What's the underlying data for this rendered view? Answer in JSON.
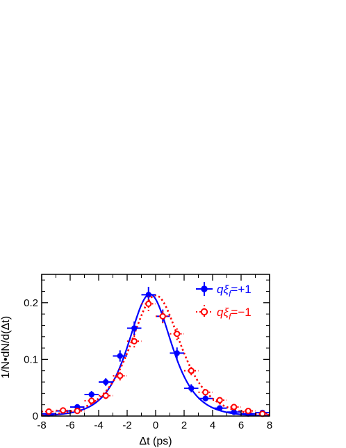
{
  "chart_data": {
    "type": "scatter",
    "xlabel": "Δt (ps)",
    "ylabel": "1/N•dN/d(Δt)",
    "xlim": [
      -8,
      8
    ],
    "ylim": [
      0,
      0.25
    ],
    "x_ticks": [
      -8,
      -6,
      -4,
      -2,
      0,
      2,
      4,
      6,
      8
    ],
    "x_tick_labels": [
      "-8",
      "-6",
      "-4",
      "-2",
      "0",
      "2",
      "4",
      "6",
      "8"
    ],
    "y_ticks": [
      0,
      0.1,
      0.2
    ],
    "y_tick_labels": [
      "0",
      "0.1",
      "0.2"
    ],
    "legend_position": "top-right",
    "series": [
      {
        "name": "qξf=+1",
        "legend_parts": {
          "q": "q",
          "xi": "ξ",
          "f": "f",
          "value": "=+1"
        },
        "color": "#0000ff",
        "marker": "filled-circle",
        "fit_style": "solid",
        "fit_peak_x": -0.4,
        "fit_peak_y": 0.215,
        "fit_tau": 1.55,
        "points": [
          {
            "x": -7.5,
            "y": 0.004,
            "ex": 0.5,
            "ey": 0.002
          },
          {
            "x": -6.5,
            "y": 0.009,
            "ex": 0.5,
            "ey": 0.003
          },
          {
            "x": -5.5,
            "y": 0.016,
            "ex": 0.5,
            "ey": 0.004
          },
          {
            "x": -4.5,
            "y": 0.038,
            "ex": 0.5,
            "ey": 0.006
          },
          {
            "x": -3.5,
            "y": 0.06,
            "ex": 0.5,
            "ey": 0.007
          },
          {
            "x": -2.5,
            "y": 0.106,
            "ex": 0.5,
            "ey": 0.01
          },
          {
            "x": -1.5,
            "y": 0.155,
            "ex": 0.5,
            "ey": 0.012
          },
          {
            "x": -0.5,
            "y": 0.214,
            "ex": 0.5,
            "ey": 0.014
          },
          {
            "x": 0.5,
            "y": 0.176,
            "ex": 0.5,
            "ey": 0.012
          },
          {
            "x": 1.5,
            "y": 0.111,
            "ex": 0.5,
            "ey": 0.01
          },
          {
            "x": 2.5,
            "y": 0.049,
            "ex": 0.5,
            "ey": 0.007
          },
          {
            "x": 3.5,
            "y": 0.031,
            "ex": 0.5,
            "ey": 0.005
          },
          {
            "x": 4.5,
            "y": 0.014,
            "ex": 0.5,
            "ey": 0.004
          },
          {
            "x": 5.5,
            "y": 0.007,
            "ex": 0.5,
            "ey": 0.003
          },
          {
            "x": 6.5,
            "y": 0.004,
            "ex": 0.5,
            "ey": 0.002
          },
          {
            "x": 7.5,
            "y": 0.006,
            "ex": 0.5,
            "ey": 0.002
          }
        ]
      },
      {
        "name": "qξf=−1",
        "legend_parts": {
          "q": "q",
          "xi": "ξ",
          "f": "f",
          "value": "=−1"
        },
        "color": "#ff0000",
        "marker": "open-circle",
        "fit_style": "dotted",
        "fit_peak_x": 0.0,
        "fit_peak_y": 0.213,
        "fit_tau": 1.8,
        "points": [
          {
            "x": -7.5,
            "y": 0.008,
            "ex": 0.5,
            "ey": 0.003
          },
          {
            "x": -6.5,
            "y": 0.01,
            "ex": 0.5,
            "ey": 0.003
          },
          {
            "x": -5.5,
            "y": 0.009,
            "ex": 0.5,
            "ey": 0.003
          },
          {
            "x": -4.5,
            "y": 0.027,
            "ex": 0.5,
            "ey": 0.005
          },
          {
            "x": -3.5,
            "y": 0.036,
            "ex": 0.5,
            "ey": 0.006
          },
          {
            "x": -2.5,
            "y": 0.071,
            "ex": 0.5,
            "ey": 0.008
          },
          {
            "x": -1.5,
            "y": 0.132,
            "ex": 0.5,
            "ey": 0.011
          },
          {
            "x": -0.5,
            "y": 0.198,
            "ex": 0.5,
            "ey": 0.013
          },
          {
            "x": 0.5,
            "y": 0.176,
            "ex": 0.5,
            "ey": 0.012
          },
          {
            "x": 1.5,
            "y": 0.145,
            "ex": 0.5,
            "ey": 0.011
          },
          {
            "x": 2.5,
            "y": 0.08,
            "ex": 0.5,
            "ey": 0.008
          },
          {
            "x": 3.5,
            "y": 0.042,
            "ex": 0.5,
            "ey": 0.006
          },
          {
            "x": 4.5,
            "y": 0.028,
            "ex": 0.5,
            "ey": 0.005
          },
          {
            "x": 5.5,
            "y": 0.016,
            "ex": 0.5,
            "ey": 0.004
          },
          {
            "x": 6.5,
            "y": 0.009,
            "ex": 0.5,
            "ey": 0.003
          },
          {
            "x": 7.5,
            "y": 0.004,
            "ex": 0.5,
            "ey": 0.002
          }
        ]
      }
    ]
  }
}
